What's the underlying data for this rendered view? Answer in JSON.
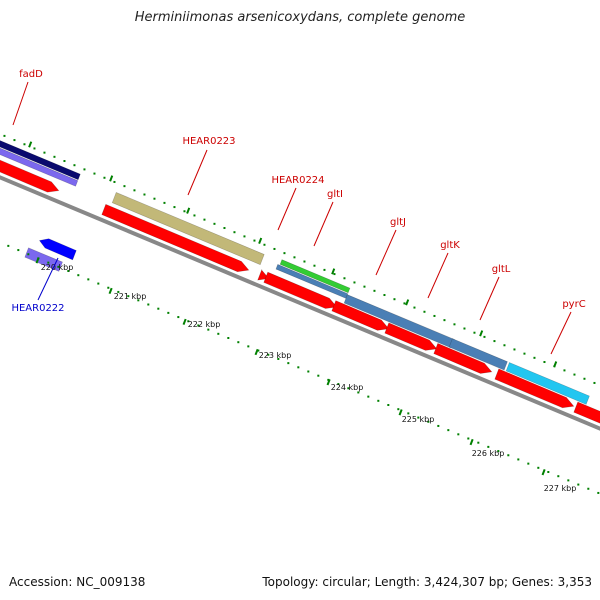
{
  "title": "Herminiimonas arsenicoxydans, complete genome",
  "footer": {
    "accession": "Accession: NC_009138",
    "stats": "Topology: circular; Length: 3,424,307 bp; Genes: 3,353"
  },
  "colors": {
    "cds": "#ff0000",
    "label_red": "#cc0000",
    "label_blue": "#0000cc",
    "backbone": "#888888",
    "tick": "#008000"
  },
  "kbp_labels": [
    "220 kbp",
    "221 kbp",
    "222 kbp",
    "223 kbp",
    "224 kbp",
    "225 kbp",
    "226 kbp",
    "227 kbp"
  ],
  "genes": [
    {
      "name": "fadD",
      "color": "label_red"
    },
    {
      "name": "HEAR0222",
      "color": "label_blue"
    },
    {
      "name": "HEAR0223",
      "color": "label_red"
    },
    {
      "name": "HEAR0224",
      "color": "label_red"
    },
    {
      "name": "gltI",
      "color": "label_red"
    },
    {
      "name": "gltJ",
      "color": "label_red"
    },
    {
      "name": "gltK",
      "color": "label_red"
    },
    {
      "name": "gltL",
      "color": "label_red"
    },
    {
      "name": "pyrC",
      "color": "label_red"
    }
  ]
}
